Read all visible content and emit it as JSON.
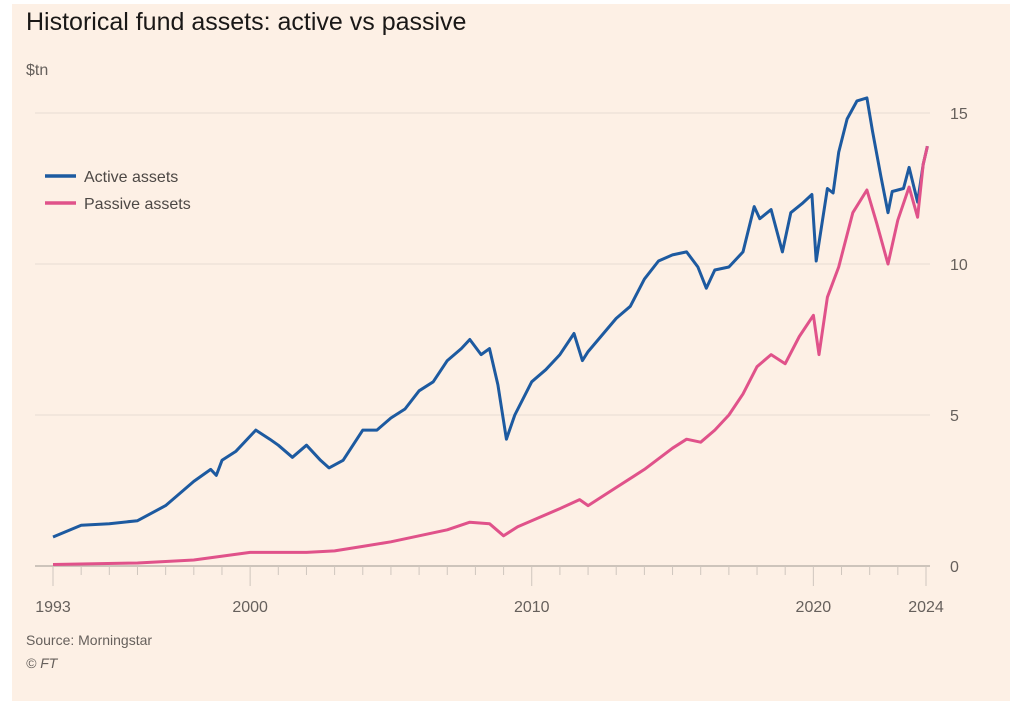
{
  "chart_data": {
    "type": "line",
    "title": "Historical fund assets: active vs passive",
    "ylabel": "$tn",
    "xlabel": "",
    "ylim": [
      0,
      15
    ],
    "xlim": [
      1993,
      2024
    ],
    "yticks": [
      "0",
      "5",
      "10",
      "15"
    ],
    "ytick_values": [
      0,
      5,
      10,
      15
    ],
    "xticks": [
      "1993",
      "2000",
      "2010",
      "2020",
      "2024"
    ],
    "xtick_values": [
      1993,
      2000,
      2010,
      2020,
      2024
    ],
    "grid": true,
    "legend_position": "top-left",
    "source": "Source: Morningstar",
    "copyright": "© FT",
    "series": [
      {
        "name": "Active assets",
        "color": "#1d5aa0",
        "x": [
          1993,
          1994,
          1995,
          1996,
          1997,
          1998,
          1998.6,
          1998.8,
          1999,
          1999.5,
          2000.2,
          2000.7,
          2001,
          2001.5,
          2002,
          2002.5,
          2002.8,
          2003.3,
          2004,
          2004.5,
          2005,
          2005.5,
          2006,
          2006.5,
          2007,
          2007.5,
          2007.8,
          2008.2,
          2008.5,
          2008.8,
          2009.1,
          2009.4,
          2010,
          2010.5,
          2011,
          2011.5,
          2011.8,
          2012,
          2013,
          2013.5,
          2014,
          2014.5,
          2015,
          2015.5,
          2015.9,
          2016.2,
          2016.5,
          2017,
          2017.5,
          2017.9,
          2018.1,
          2018.5,
          2018.9,
          2019.2,
          2019.6,
          2019.95,
          2020.1,
          2020.5,
          2020.7,
          2020.9,
          2021.2,
          2021.55,
          2021.9,
          2022.1,
          2022.4,
          2022.65,
          2022.8,
          2023.2,
          2023.4,
          2023.7,
          2023.9,
          2024.05
        ],
        "values": [
          0.96,
          1.35,
          1.4,
          1.5,
          2.0,
          2.8,
          3.2,
          3.0,
          3.5,
          3.8,
          4.5,
          4.2,
          4.0,
          3.6,
          4.0,
          3.5,
          3.25,
          3.5,
          4.5,
          4.5,
          4.9,
          5.2,
          5.8,
          6.1,
          6.8,
          7.2,
          7.5,
          7.0,
          7.2,
          6.0,
          4.2,
          5.0,
          6.1,
          6.5,
          7.0,
          7.7,
          6.8,
          7.1,
          8.2,
          8.6,
          9.5,
          10.1,
          10.3,
          10.4,
          9.9,
          9.2,
          9.8,
          9.9,
          10.4,
          11.9,
          11.5,
          11.8,
          10.4,
          11.7,
          12.0,
          12.3,
          10.1,
          12.5,
          12.35,
          13.7,
          14.8,
          15.4,
          15.5,
          14.4,
          12.9,
          11.7,
          12.4,
          12.5,
          13.2,
          12.05,
          13.3,
          13.9
        ]
      },
      {
        "name": "Passive assets",
        "color": "#e0528a",
        "x": [
          1993,
          1996,
          1998,
          2000,
          2001,
          2002,
          2003,
          2004,
          2005,
          2006,
          2007,
          2007.8,
          2008.5,
          2009.0,
          2009.5,
          2010,
          2011,
          2011.7,
          2012,
          2013,
          2014,
          2015,
          2015.5,
          2016,
          2016.5,
          2017,
          2017.5,
          2018,
          2018.5,
          2019,
          2019.5,
          2020.0,
          2020.2,
          2020.5,
          2020.9,
          2021.4,
          2021.9,
          2022.25,
          2022.65,
          2023.0,
          2023.4,
          2023.7,
          2023.9,
          2024.05
        ],
        "values": [
          0.05,
          0.1,
          0.2,
          0.45,
          0.45,
          0.45,
          0.5,
          0.65,
          0.8,
          1.0,
          1.2,
          1.45,
          1.4,
          1.0,
          1.3,
          1.5,
          1.9,
          2.2,
          2.0,
          2.6,
          3.2,
          3.9,
          4.2,
          4.1,
          4.5,
          5.0,
          5.7,
          6.6,
          7.0,
          6.7,
          7.6,
          8.3,
          7.0,
          8.9,
          9.9,
          11.7,
          12.45,
          11.35,
          10.0,
          11.45,
          12.55,
          11.55,
          13.3,
          13.9
        ]
      }
    ]
  }
}
